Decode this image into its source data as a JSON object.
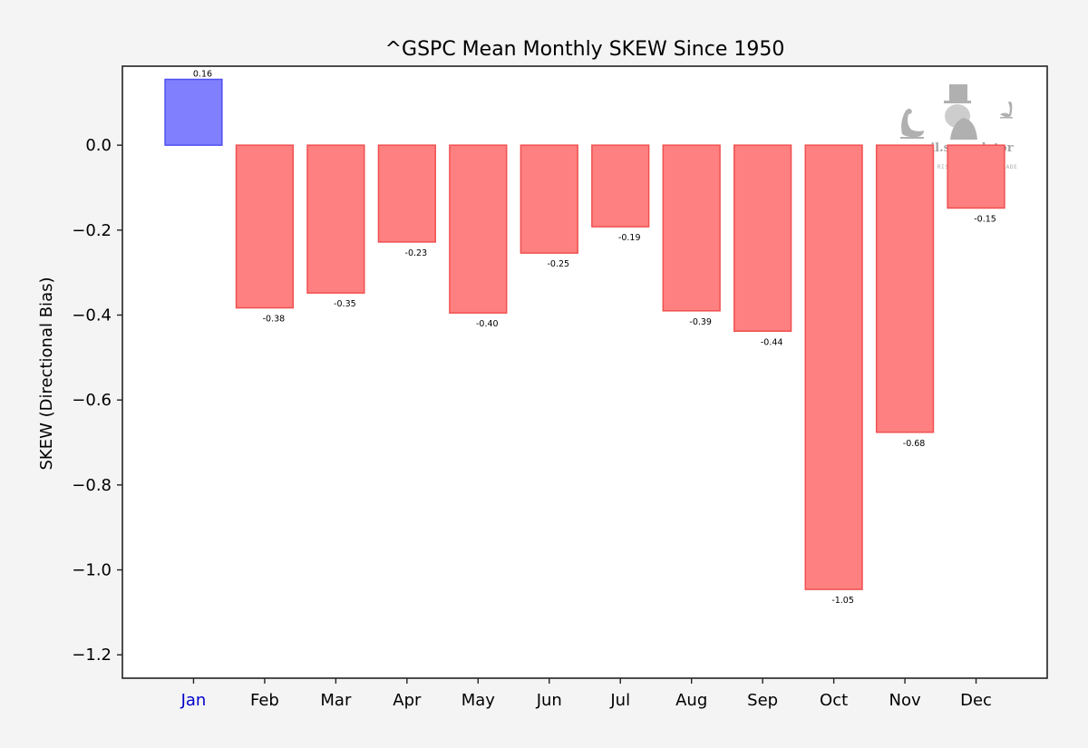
{
  "chart_data": {
    "type": "bar",
    "title": "^GSPC Mean Monthly SKEW Since 1950",
    "xlabel": "",
    "ylabel": "SKEW (Directional Bias)",
    "categories": [
      "Jan",
      "Feb",
      "Mar",
      "Apr",
      "May",
      "Jun",
      "Jul",
      "Aug",
      "Sep",
      "Oct",
      "Nov",
      "Dec"
    ],
    "values": [
      0.155,
      -0.383,
      -0.348,
      -0.228,
      -0.395,
      -0.254,
      -0.192,
      -0.39,
      -0.438,
      -1.046,
      -0.676,
      -0.148
    ],
    "value_labels": [
      "0.16",
      "-0.38",
      "-0.35",
      "-0.23",
      "-0.40",
      "-0.25",
      "-0.19",
      "-0.39",
      "-0.44",
      "-1.05",
      "-0.68",
      "-0.15"
    ],
    "highlighted_category": "Jan",
    "ylim": [
      -1.255,
      0.186
    ],
    "xlim": [
      -1,
      12
    ],
    "yticks": [
      0.0,
      -0.2,
      -0.4,
      -0.6,
      -0.8,
      -1.0,
      -1.2
    ],
    "ytick_labels": [
      "0.0",
      "−0.2",
      "−0.4",
      "−0.6",
      "−0.8",
      "−1.0",
      "−1.2"
    ],
    "grid": false,
    "legend": "none",
    "colors": {
      "positive_fill": "#8080ff",
      "positive_edge": "#5050f0",
      "negative_fill": "#ff8080",
      "negative_edge": "#f05050",
      "highlight_tick": "#0000cc"
    }
  },
  "watermark": {
    "brand": "evil.speculator",
    "tagline": "KNOW YOUR RISK BEFORE YOU TRADE"
  }
}
